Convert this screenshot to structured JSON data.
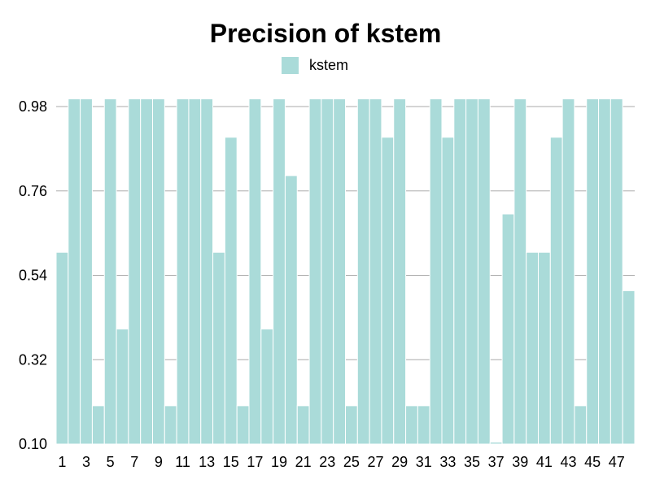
{
  "chart_data": {
    "type": "bar",
    "title": "Precision of kstem",
    "legend": {
      "label": "kstem",
      "color": "#aadbd9",
      "placement": "top-center"
    },
    "xlabel": "",
    "ylabel": "",
    "ylim": [
      0.1,
      1.0
    ],
    "yticks": [
      "0.10",
      "0.32",
      "0.54",
      "0.76",
      "0.98"
    ],
    "categories": [
      1,
      2,
      3,
      4,
      5,
      6,
      7,
      8,
      9,
      10,
      11,
      12,
      13,
      14,
      15,
      16,
      17,
      18,
      19,
      20,
      21,
      22,
      23,
      24,
      25,
      26,
      27,
      28,
      29,
      30,
      31,
      32,
      33,
      34,
      35,
      36,
      37,
      38,
      39,
      40,
      41,
      42,
      43,
      44,
      45,
      46,
      47,
      48
    ],
    "x_tick_labels": [
      "1",
      "3",
      "5",
      "7",
      "9",
      "11",
      "13",
      "15",
      "17",
      "19",
      "21",
      "23",
      "25",
      "27",
      "29",
      "31",
      "33",
      "35",
      "37",
      "39",
      "41",
      "43",
      "45",
      "47"
    ],
    "values": [
      0.6,
      1.0,
      1.0,
      0.2,
      1.0,
      0.4,
      1.0,
      1.0,
      1.0,
      0.2,
      1.0,
      1.0,
      1.0,
      0.6,
      0.9,
      0.2,
      1.0,
      0.4,
      1.0,
      0.8,
      0.2,
      1.0,
      1.0,
      1.0,
      0.2,
      1.0,
      1.0,
      0.9,
      1.0,
      0.2,
      0.2,
      1.0,
      0.9,
      1.0,
      1.0,
      1.0,
      0.105,
      0.7,
      1.0,
      0.6,
      0.6,
      0.9,
      1.0,
      0.2,
      1.0,
      1.0,
      1.0,
      0.5
    ],
    "colors": {
      "bar": "#aadbd9",
      "bar_stroke": "#ffffff",
      "grid": "#aaaaaa"
    }
  }
}
